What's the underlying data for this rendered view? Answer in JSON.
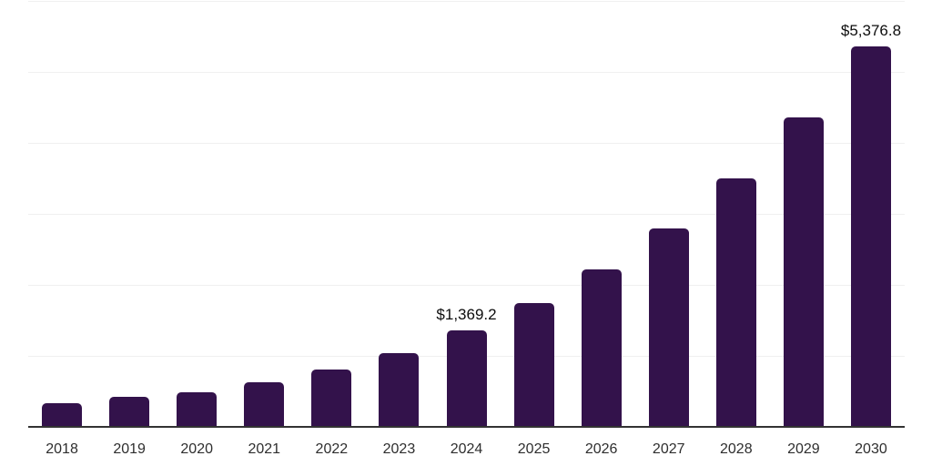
{
  "chart_data": {
    "type": "bar",
    "title": "",
    "categories": [
      "2018",
      "2019",
      "2020",
      "2021",
      "2022",
      "2023",
      "2024",
      "2025",
      "2026",
      "2027",
      "2028",
      "2029",
      "2030"
    ],
    "values": [
      348,
      433,
      506,
      644,
      827,
      1054,
      1369.2,
      1760,
      2231,
      2808,
      3513,
      4372,
      5376.8
    ],
    "value_labels": [
      "",
      "",
      "",
      "",
      "",
      "",
      "$1,369.2",
      "",
      "",
      "",
      "",
      "",
      "$5,376.8"
    ],
    "xlabel": "",
    "ylabel": "",
    "ylim": [
      0,
      6000
    ],
    "gridline_step": 1000,
    "grid": "horizontal",
    "legend_position": "none",
    "colors": {
      "bar": "#33124B",
      "gridline": "#F0F0F0",
      "axis_line": "#333333",
      "value_label_text": "#0D0D0D",
      "tick_label_text": "#2E2E2E",
      "background": "#FFFFFF"
    }
  }
}
